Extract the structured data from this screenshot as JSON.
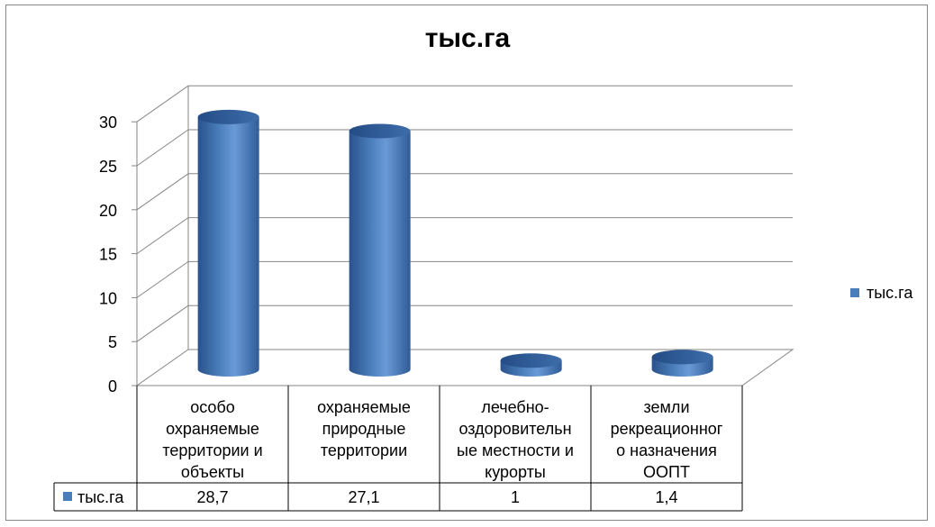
{
  "chart_data": {
    "type": "bar",
    "title": "тыс.га",
    "categories": [
      [
        "особо",
        "охраняемые",
        "территории и",
        "объекты"
      ],
      [
        "охраняемые",
        "природные",
        "территории"
      ],
      [
        "лечебно-",
        "оздоровительн",
        "ые местности и",
        "курорты"
      ],
      [
        "земли",
        "рекреационног",
        "о назначения",
        "ООПТ"
      ]
    ],
    "series": [
      {
        "name": "тыс.га",
        "values": [
          28.7,
          27.1,
          1,
          1.4
        ],
        "value_labels": [
          "28,7",
          "27,1",
          "1",
          "1,4"
        ],
        "color": "#4A7EBB"
      }
    ],
    "ylim": [
      0,
      30
    ],
    "yticks": [
      "0",
      "5",
      "10",
      "15",
      "20",
      "25",
      "30"
    ],
    "grid": true,
    "legend_position": "right",
    "data_table": true
  }
}
